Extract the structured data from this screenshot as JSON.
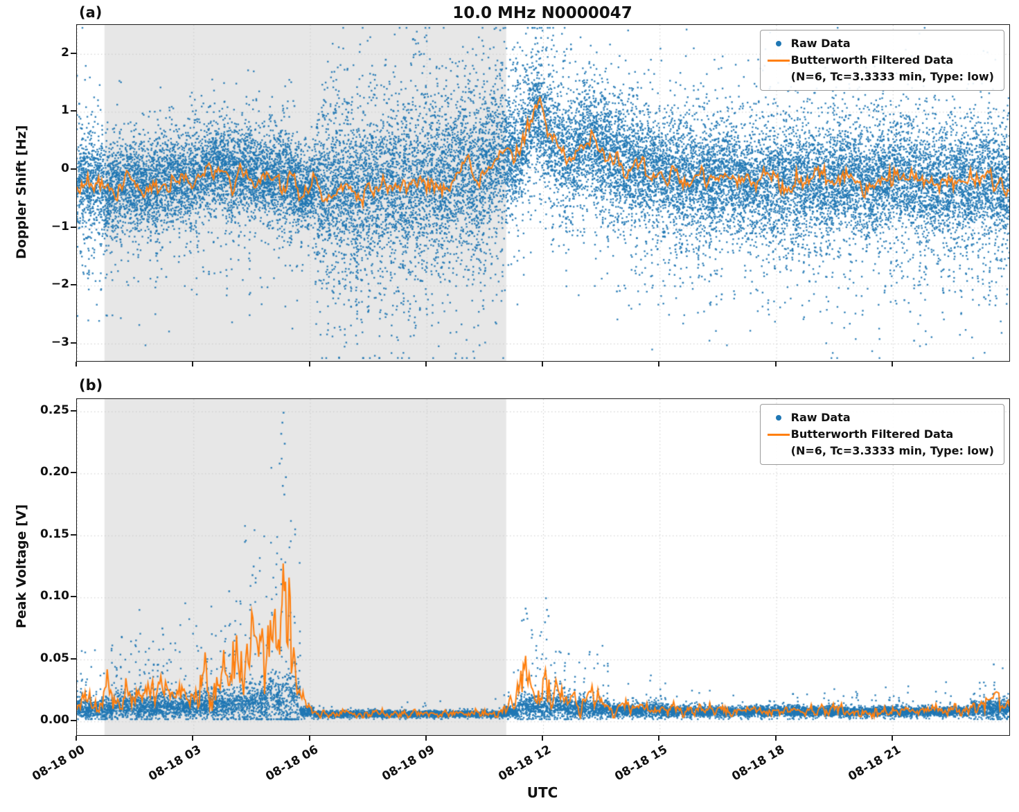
{
  "figure": {
    "title": "10.0 MHz N0000047",
    "xlabel": "UTC"
  },
  "panels": [
    {
      "label": "(a)",
      "ylabel": "Doppler Shift [Hz]"
    },
    {
      "label": "(b)",
      "ylabel": "Peak Voltage [V]"
    }
  ],
  "legend": {
    "raw_label": "Raw Data",
    "filtered_label": "Butterworth Filtered Data",
    "filtered_sublabel": "(N=6, Tc=3.3333 min, Type: low)"
  },
  "colors": {
    "raw": "#1f77b4",
    "filtered": "#ff7f0e",
    "shade": "#e7e7e7",
    "grid": "#c9c9c9",
    "axis": "#1a1a1a",
    "text": "#111111"
  },
  "chart_data": [
    {
      "type": "scatter",
      "panel": "a",
      "title": "10.0 MHz N0000047",
      "ylabel": "Doppler Shift [Hz]",
      "xlabel": "UTC",
      "ylim": [
        -3.3,
        2.5
      ],
      "yticks": [
        2,
        1,
        0,
        -1,
        -2,
        -3
      ],
      "ytick_labels": [
        "2",
        "1",
        "0",
        "−1",
        "−2",
        "−3"
      ],
      "xlim_hours": [
        0,
        24
      ],
      "xticks_hours": [
        0,
        3,
        6,
        9,
        12,
        15,
        18,
        21
      ],
      "xtick_labels": [
        "08-18 00",
        "08-18 03",
        "08-18 06",
        "08-18 09",
        "08-18 12",
        "08-18 15",
        "08-18 18",
        "08-18 21"
      ],
      "shaded_region_hours": [
        0.71,
        11.05
      ],
      "grid": true,
      "legend_position": "upper right",
      "seed": 42,
      "series": [
        {
          "name": "Raw Data",
          "type": "scatter",
          "color": "#1f77b4",
          "count": 24000,
          "segments": [
            [
              0,
              1,
              0.45,
              0.05,
              0.5,
              0.02,
              0.4
            ],
            [
              1,
              5.8,
              0.38,
              0.04,
              0.5,
              0.02,
              0.35
            ],
            [
              5.8,
              6.15,
              0.32,
              0.02,
              0.4,
              0.01,
              0.3
            ],
            [
              6.15,
              11.05,
              0.66,
              0.06,
              0.6,
              0.04,
              0.5
            ],
            [
              11.05,
              12.6,
              0.5,
              0.03,
              0.5,
              0.05,
              0.4
            ],
            [
              12.6,
              14.5,
              0.52,
              0.04,
              0.5,
              0.03,
              0.4
            ],
            [
              14.5,
              19,
              0.48,
              0.05,
              0.55,
              0.03,
              0.45
            ],
            [
              19,
              24.01,
              0.5,
              0.05,
              0.6,
              0.03,
              0.45
            ]
          ],
          "outliers": [
            [
              8.65,
              2.25
            ],
            [
              7.95,
              1.9
            ],
            [
              11.15,
              1.9
            ],
            [
              11.05,
              1.75
            ],
            [
              12.0,
              1.5
            ],
            [
              5.6,
              1.1
            ],
            [
              21.55,
              -2.95
            ],
            [
              21.45,
              -2.45
            ],
            [
              21.3,
              -2.25
            ],
            [
              16.6,
              -2.15
            ],
            [
              9.0,
              -2.4
            ],
            [
              8.35,
              -2.3
            ],
            [
              7.0,
              -2.25
            ],
            [
              10.45,
              -2.35
            ],
            [
              13.9,
              -2.1
            ],
            [
              19.85,
              -2.05
            ],
            [
              23.35,
              -2.2
            ],
            [
              15.6,
              -1.95
            ],
            [
              2.3,
              -1.85
            ],
            [
              3.4,
              -1.8
            ]
          ]
        },
        {
          "name": "Butterworth Filtered Data (N=6, Tc=3.3333 min, Type: low)",
          "type": "line",
          "color": "#ff7f0e",
          "wiggle": 0.085,
          "wiggle_mode": "abs",
          "step": 0.04,
          "points": [
            [
              0,
              -0.25
            ],
            [
              0.4,
              -0.18
            ],
            [
              0.8,
              -0.35
            ],
            [
              1.2,
              -0.22
            ],
            [
              1.6,
              -0.3
            ],
            [
              2.0,
              -0.28
            ],
            [
              2.4,
              -0.12
            ],
            [
              2.8,
              -0.2
            ],
            [
              3.2,
              -0.05
            ],
            [
              3.6,
              0.08
            ],
            [
              4.0,
              -0.12
            ],
            [
              4.4,
              0.02
            ],
            [
              4.8,
              -0.18
            ],
            [
              5.2,
              -0.08
            ],
            [
              5.5,
              -0.15
            ],
            [
              5.8,
              -0.42
            ],
            [
              6.1,
              -0.28
            ],
            [
              6.5,
              -0.38
            ],
            [
              6.9,
              -0.25
            ],
            [
              7.3,
              -0.45
            ],
            [
              7.7,
              -0.3
            ],
            [
              8.1,
              -0.2
            ],
            [
              8.5,
              -0.35
            ],
            [
              8.9,
              -0.15
            ],
            [
              9.3,
              -0.3
            ],
            [
              9.7,
              -0.1
            ],
            [
              10.0,
              0.15
            ],
            [
              10.3,
              -0.25
            ],
            [
              10.6,
              0.1
            ],
            [
              10.9,
              0.3
            ],
            [
              11.2,
              0.15
            ],
            [
              11.5,
              0.45
            ],
            [
              11.75,
              0.95
            ],
            [
              11.9,
              1.05
            ],
            [
              12.05,
              0.75
            ],
            [
              12.3,
              0.45
            ],
            [
              12.6,
              0.2
            ],
            [
              12.9,
              0.3
            ],
            [
              13.2,
              0.55
            ],
            [
              13.5,
              0.35
            ],
            [
              13.9,
              0.15
            ],
            [
              14.3,
              0.1
            ],
            [
              14.8,
              0.0
            ],
            [
              15.3,
              -0.1
            ],
            [
              15.8,
              -0.15
            ],
            [
              16.3,
              -0.2
            ],
            [
              16.8,
              -0.1
            ],
            [
              17.3,
              -0.28
            ],
            [
              17.8,
              -0.18
            ],
            [
              18.3,
              -0.25
            ],
            [
              18.8,
              -0.15
            ],
            [
              19.3,
              -0.2
            ],
            [
              19.8,
              -0.1
            ],
            [
              20.3,
              -0.25
            ],
            [
              20.8,
              -0.18
            ],
            [
              21.3,
              -0.15
            ],
            [
              21.8,
              -0.28
            ],
            [
              22.3,
              -0.2
            ],
            [
              22.8,
              -0.25
            ],
            [
              23.3,
              -0.18
            ],
            [
              23.7,
              -0.25
            ],
            [
              24,
              -0.28
            ]
          ]
        }
      ]
    },
    {
      "type": "scatter",
      "panel": "b",
      "ylabel": "Peak Voltage [V]",
      "xlabel": "UTC",
      "ylim": [
        -0.011,
        0.26
      ],
      "yticks": [
        0.25,
        0.2,
        0.15,
        0.1,
        0.05,
        0
      ],
      "ytick_labels": [
        "0.25",
        "0.20",
        "0.15",
        "0.10",
        "0.05",
        "0.00"
      ],
      "xlim_hours": [
        0,
        24
      ],
      "xticks_hours": [
        0,
        3,
        6,
        9,
        12,
        15,
        18,
        21
      ],
      "xtick_labels": [
        "08-18 00",
        "08-18 03",
        "08-18 06",
        "08-18 09",
        "08-18 12",
        "08-18 15",
        "08-18 18",
        "08-18 21"
      ],
      "shaded_region_hours": [
        0.71,
        11.05
      ],
      "grid": true,
      "legend_position": "upper right",
      "seed": 7,
      "series": [
        {
          "name": "Raw Data",
          "type": "scatter",
          "color": "#1f77b4",
          "count": 12000,
          "segments": [
            [
              0,
              0.9,
              0.01,
              0.008,
              0.05,
              0.02
            ],
            [
              0.9,
              2.3,
              0.012,
              0.01,
              0.08,
              0.03
            ],
            [
              2.3,
              3.1,
              0.012,
              0.009,
              0.06,
              0.028
            ],
            [
              3.1,
              4.1,
              0.014,
              0.012,
              0.08,
              0.035
            ],
            [
              4.1,
              4.9,
              0.015,
              0.015,
              0.1,
              0.05
            ],
            [
              4.9,
              5.75,
              0.018,
              0.022,
              0.13,
              0.07
            ],
            [
              5.75,
              6.1,
              0.008,
              0.004,
              0.01,
              0.01
            ],
            [
              6.1,
              11.0,
              0.006,
              0.0025,
              0.006,
              0.008
            ],
            [
              11.0,
              11.35,
              0.008,
              0.004,
              0.03,
              0.012
            ],
            [
              11.35,
              12.7,
              0.012,
              0.01,
              0.1,
              0.028
            ],
            [
              12.7,
              13.7,
              0.01,
              0.007,
              0.06,
              0.018
            ],
            [
              13.7,
              15.2,
              0.009,
              0.005,
              0.03,
              0.012
            ],
            [
              15.2,
              19.0,
              0.008,
              0.004,
              0.02,
              0.008
            ],
            [
              19.0,
              23.0,
              0.008,
              0.004,
              0.02,
              0.008
            ],
            [
              23.0,
              24.01,
              0.01,
              0.007,
              0.05,
              0.014
            ]
          ],
          "outliers": [
            [
              5.32,
              0.249
            ],
            [
              5.29,
              0.241
            ],
            [
              5.26,
              0.232
            ],
            [
              5.35,
              0.224
            ],
            [
              5.22,
              0.208
            ],
            [
              5.38,
              0.197
            ],
            [
              5.3,
              0.19
            ],
            [
              5.34,
              0.183
            ],
            [
              4.55,
              0.125
            ],
            [
              4.52,
              0.118
            ],
            [
              3.92,
              0.105
            ],
            [
              4.6,
              0.112
            ],
            [
              11.55,
              0.091
            ],
            [
              11.58,
              0.087
            ],
            [
              12.1,
              0.09
            ],
            [
              12.14,
              0.085
            ],
            [
              2.2,
              0.075
            ],
            [
              2.22,
              0.07
            ],
            [
              13.2,
              0.056
            ],
            [
              23.6,
              0.046
            ],
            [
              11.5,
              0.082
            ],
            [
              12.05,
              0.08
            ]
          ]
        },
        {
          "name": "Butterworth Filtered Data (N=6, Tc=3.3333 min, Type: low)",
          "type": "line",
          "color": "#ff7f0e",
          "wiggle": 0.25,
          "wiggle_mode": "rel",
          "step": 0.03,
          "points": [
            [
              0,
              0.012
            ],
            [
              0.25,
              0.022
            ],
            [
              0.5,
              0.012
            ],
            [
              0.75,
              0.028
            ],
            [
              1.0,
              0.013
            ],
            [
              1.25,
              0.024
            ],
            [
              1.5,
              0.014
            ],
            [
              1.75,
              0.03
            ],
            [
              2.0,
              0.018
            ],
            [
              2.2,
              0.034
            ],
            [
              2.4,
              0.015
            ],
            [
              2.7,
              0.028
            ],
            [
              2.9,
              0.016
            ],
            [
              3.1,
              0.022
            ],
            [
              3.3,
              0.038
            ],
            [
              3.5,
              0.022
            ],
            [
              3.7,
              0.042
            ],
            [
              3.9,
              0.028
            ],
            [
              4.1,
              0.055
            ],
            [
              4.3,
              0.03
            ],
            [
              4.5,
              0.06
            ],
            [
              4.7,
              0.042
            ],
            [
              4.85,
              0.062
            ],
            [
              5.0,
              0.05
            ],
            [
              5.15,
              0.07
            ],
            [
              5.3,
              0.105
            ],
            [
              5.45,
              0.085
            ],
            [
              5.6,
              0.055
            ],
            [
              5.75,
              0.025
            ],
            [
              5.9,
              0.01
            ],
            [
              6.2,
              0.007
            ],
            [
              7,
              0.006
            ],
            [
              8,
              0.006
            ],
            [
              9,
              0.007
            ],
            [
              10,
              0.006
            ],
            [
              10.8,
              0.007
            ],
            [
              11.1,
              0.012
            ],
            [
              11.3,
              0.02
            ],
            [
              11.5,
              0.046
            ],
            [
              11.65,
              0.025
            ],
            [
              11.85,
              0.02
            ],
            [
              12.0,
              0.03
            ],
            [
              12.15,
              0.04
            ],
            [
              12.35,
              0.022
            ],
            [
              12.6,
              0.018
            ],
            [
              12.9,
              0.014
            ],
            [
              13.15,
              0.028
            ],
            [
              13.4,
              0.016
            ],
            [
              13.7,
              0.012
            ],
            [
              14.2,
              0.011
            ],
            [
              14.8,
              0.01
            ],
            [
              15.5,
              0.009
            ],
            [
              16.2,
              0.01
            ],
            [
              17,
              0.008
            ],
            [
              17.8,
              0.009
            ],
            [
              18.6,
              0.008
            ],
            [
              19.4,
              0.01
            ],
            [
              20.2,
              0.008
            ],
            [
              21,
              0.009
            ],
            [
              21.8,
              0.008
            ],
            [
              22.6,
              0.01
            ],
            [
              23.2,
              0.012
            ],
            [
              23.6,
              0.02
            ],
            [
              23.85,
              0.014
            ],
            [
              24,
              0.012
            ]
          ]
        }
      ]
    }
  ]
}
